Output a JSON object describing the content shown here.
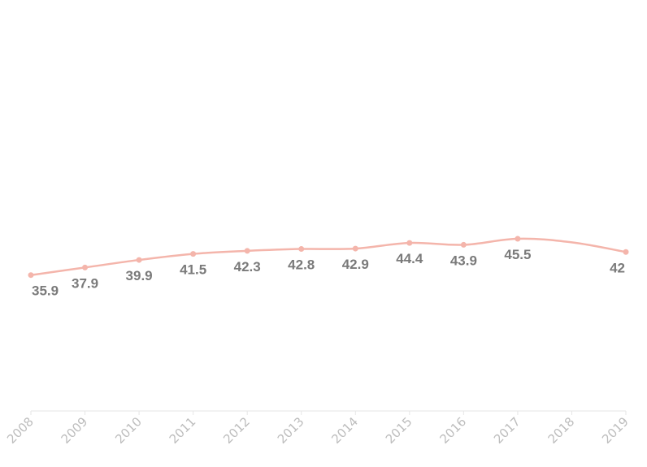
{
  "chart_data": {
    "type": "line",
    "title": "",
    "xlabel": "",
    "ylabel": "",
    "grid": false,
    "legend": "none",
    "x_tick_rotation": "diagonal",
    "categories": [
      "2008",
      "2009",
      "2010",
      "2011",
      "2012",
      "2013",
      "2014",
      "2015",
      "2016",
      "2017",
      "2018",
      "2019"
    ],
    "series": [
      {
        "values": [
          35.9,
          37.9,
          39.9,
          41.5,
          42.3,
          42.8,
          42.9,
          44.4,
          43.9,
          45.5,
          null,
          42
        ],
        "data_labels": [
          "35.9",
          "37.9",
          "39.9",
          "41.5",
          "42.3",
          "42.8",
          "42.9",
          "44.4",
          "43.9",
          "45.5",
          "",
          "42"
        ],
        "color": "#f4b5ab",
        "smooth": true
      }
    ],
    "ylim": [
      0,
      100
    ]
  },
  "colors": {
    "series": "#f4b5ab",
    "data_label": "#7a7a7a",
    "tick_label": "#bdbdbd",
    "axis_line": "#e6e6e6"
  }
}
